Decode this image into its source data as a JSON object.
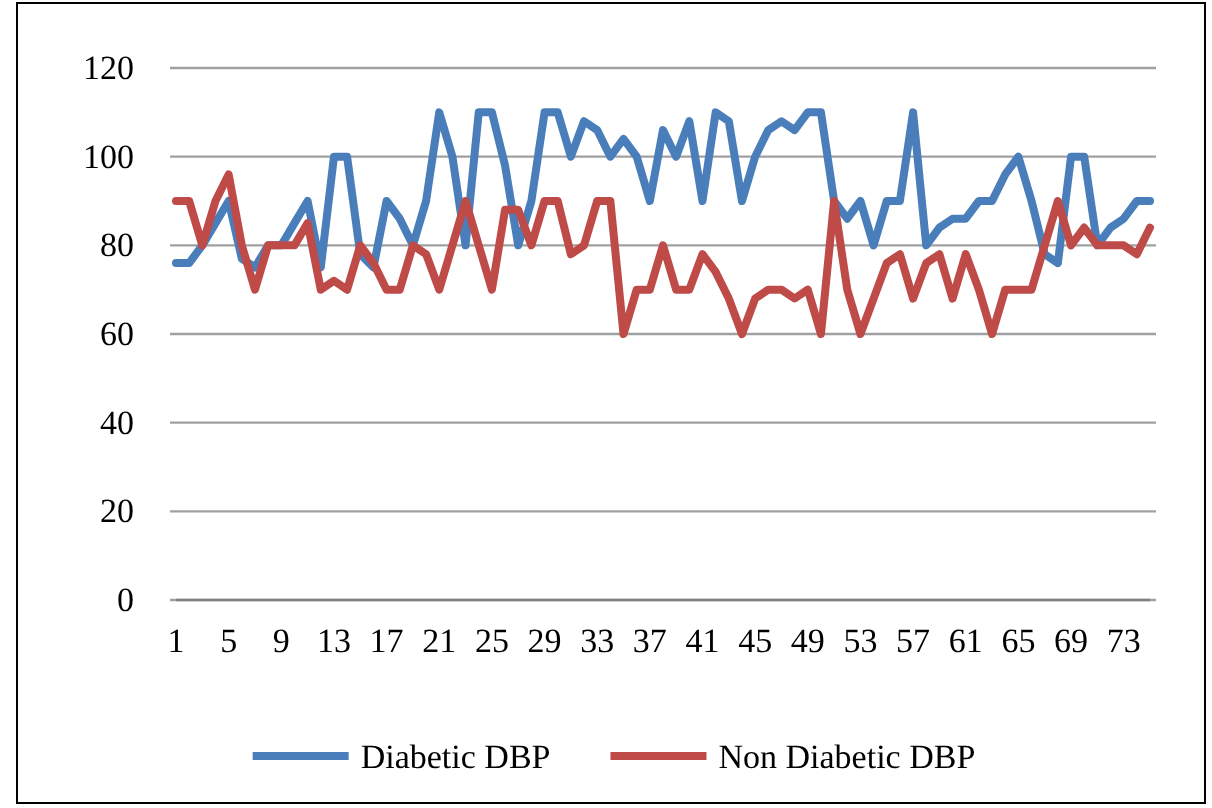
{
  "chart_data": {
    "type": "line",
    "categories": [
      "1",
      null,
      null,
      null,
      "5",
      null,
      null,
      null,
      "9",
      null,
      null,
      null,
      "13",
      null,
      null,
      null,
      "17",
      null,
      null,
      null,
      "21",
      null,
      null,
      null,
      "25",
      null,
      null,
      null,
      "29",
      null,
      null,
      null,
      "33",
      null,
      null,
      null,
      "37",
      null,
      null,
      null,
      "41",
      null,
      null,
      null,
      "45",
      null,
      null,
      null,
      "49",
      null,
      null,
      null,
      "53",
      null,
      null,
      null,
      "57",
      null,
      null,
      null,
      "61",
      null,
      null,
      null,
      "65",
      null,
      null,
      null,
      "69",
      null,
      null,
      null,
      "73",
      null,
      null
    ],
    "series": [
      {
        "name": "Diabetic DBP",
        "color": "#4a7ebb",
        "values": [
          76,
          76,
          80,
          85,
          90,
          77,
          75,
          80,
          80,
          85,
          90,
          75,
          100,
          100,
          78,
          75,
          90,
          86,
          80,
          90,
          110,
          100,
          80,
          110,
          110,
          98,
          80,
          90,
          110,
          110,
          100,
          108,
          106,
          100,
          104,
          100,
          90,
          106,
          100,
          108,
          90,
          110,
          108,
          90,
          100,
          106,
          108,
          106,
          110,
          110,
          90,
          86,
          90,
          80,
          90,
          90,
          110,
          80,
          84,
          86,
          86,
          90,
          90,
          96,
          100,
          90,
          78,
          76,
          100,
          100,
          80,
          84,
          86,
          90,
          90
        ]
      },
      {
        "name": "Non Diabetic DBP",
        "color": "#be4b48",
        "values": [
          90,
          90,
          80,
          90,
          96,
          80,
          70,
          80,
          80,
          80,
          85,
          70,
          72,
          70,
          80,
          76,
          70,
          70,
          80,
          78,
          70,
          80,
          90,
          80,
          70,
          88,
          88,
          80,
          90,
          90,
          78,
          80,
          90,
          90,
          60,
          70,
          70,
          80,
          70,
          70,
          78,
          74,
          68,
          60,
          68,
          70,
          70,
          68,
          70,
          60,
          90,
          70,
          60,
          68,
          76,
          78,
          68,
          76,
          78,
          68,
          78,
          70,
          60,
          70,
          70,
          70,
          80,
          90,
          80,
          84,
          80,
          80,
          80,
          78,
          84
        ]
      }
    ],
    "ylim": [
      0,
      120
    ],
    "yticks": [
      0,
      20,
      40,
      60,
      80,
      100,
      120
    ],
    "grid": "y",
    "legend": "bottom",
    "marker": "none",
    "line_style": "solid"
  }
}
